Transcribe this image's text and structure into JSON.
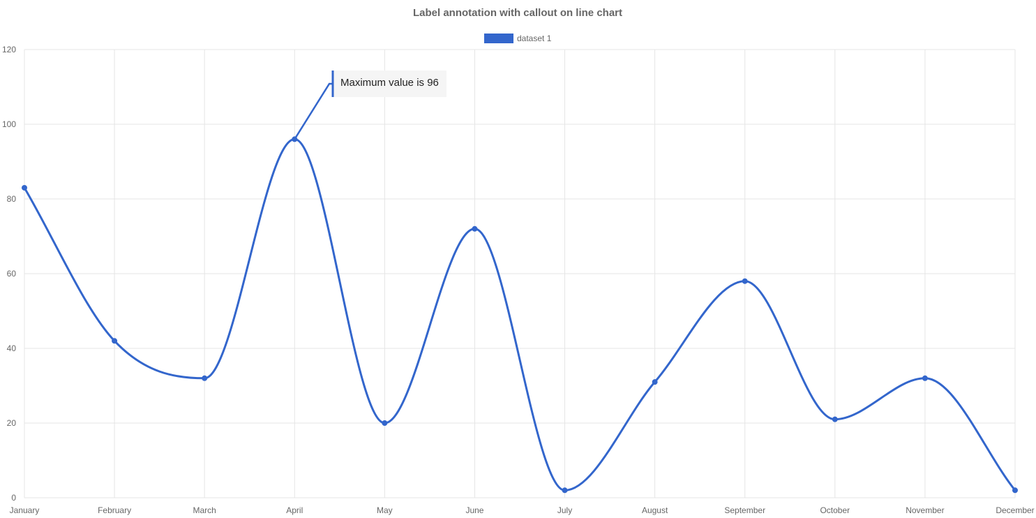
{
  "chart_data": {
    "type": "line",
    "title": "Label annotation with callout on line chart",
    "categories": [
      "January",
      "February",
      "March",
      "April",
      "May",
      "June",
      "July",
      "August",
      "September",
      "October",
      "November",
      "December"
    ],
    "series": [
      {
        "name": "dataset 1",
        "color": "#3366cc",
        "values": [
          83,
          42,
          32,
          96,
          20,
          72,
          2,
          31,
          58,
          21,
          32,
          2
        ]
      }
    ],
    "ylim": [
      0,
      120
    ],
    "yticks": [
      "0",
      "20",
      "40",
      "60",
      "80",
      "100",
      "120"
    ],
    "grid": true,
    "legend_position": "top-center",
    "annotation": {
      "type": "label-callout",
      "text": "Maximum value is 96",
      "target_category": "April",
      "target_value": 96,
      "background_color": "#f5f5f5",
      "border_color": "#3366cc"
    }
  }
}
